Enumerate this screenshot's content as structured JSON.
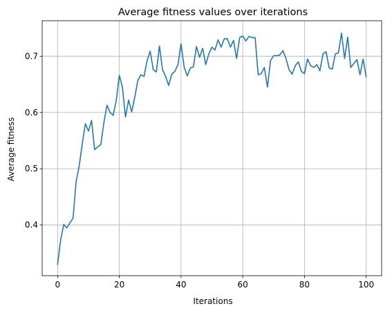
{
  "chart_data": {
    "type": "line",
    "title": "Average fitness values over iterations",
    "xlabel": "Iterations",
    "ylabel": "Average fitness",
    "xlim": [
      -5,
      105
    ],
    "ylim": [
      0.31,
      0.763
    ],
    "xticks": [
      0,
      20,
      40,
      60,
      80,
      100
    ],
    "yticks": [
      0.4,
      0.5,
      0.6,
      0.7
    ],
    "xtick_labels": [
      "0",
      "20",
      "40",
      "60",
      "80",
      "100"
    ],
    "ytick_labels": [
      "0.4",
      "0.5",
      "0.6",
      "0.7"
    ],
    "grid": true,
    "line_color": "#1f77b4",
    "series": [
      {
        "x": [
          0,
          1,
          2,
          3,
          4,
          5,
          6,
          7,
          8,
          9,
          10,
          11,
          12,
          13,
          14,
          15,
          16,
          17,
          18,
          19,
          20,
          21,
          22,
          23,
          24,
          25,
          26,
          27,
          28,
          29,
          30,
          31,
          32,
          33,
          34,
          35,
          36,
          37,
          38,
          39,
          40,
          41,
          42,
          43,
          44,
          45,
          46,
          47,
          48,
          49,
          50,
          51,
          52,
          53,
          54,
          55,
          56,
          57,
          58,
          59,
          60,
          61,
          62,
          63,
          64,
          65,
          66,
          67,
          68,
          69,
          70,
          71,
          72,
          73,
          74,
          75,
          76,
          77,
          78,
          79,
          80,
          81,
          82,
          83,
          84,
          85,
          86,
          87,
          88,
          89,
          90,
          91,
          92,
          93,
          94,
          95,
          96,
          97,
          98,
          99,
          100
        ],
        "values": [
          0.33,
          0.374,
          0.401,
          0.395,
          0.404,
          0.412,
          0.477,
          0.505,
          0.545,
          0.58,
          0.567,
          0.586,
          0.534,
          0.539,
          0.543,
          0.582,
          0.613,
          0.6,
          0.595,
          0.621,
          0.666,
          0.645,
          0.592,
          0.622,
          0.601,
          0.627,
          0.657,
          0.667,
          0.664,
          0.692,
          0.709,
          0.676,
          0.672,
          0.718,
          0.676,
          0.664,
          0.648,
          0.668,
          0.673,
          0.685,
          0.722,
          0.681,
          0.665,
          0.679,
          0.681,
          0.717,
          0.698,
          0.714,
          0.685,
          0.704,
          0.716,
          0.711,
          0.729,
          0.716,
          0.731,
          0.731,
          0.716,
          0.728,
          0.696,
          0.733,
          0.736,
          0.727,
          0.735,
          0.733,
          0.733,
          0.667,
          0.669,
          0.68,
          0.645,
          0.692,
          0.701,
          0.701,
          0.702,
          0.71,
          0.696,
          0.676,
          0.668,
          0.683,
          0.69,
          0.673,
          0.669,
          0.695,
          0.683,
          0.68,
          0.685,
          0.674,
          0.704,
          0.708,
          0.679,
          0.677,
          0.704,
          0.706,
          0.741,
          0.696,
          0.734,
          0.68,
          0.687,
          0.694,
          0.667,
          0.695,
          0.663
        ]
      }
    ]
  }
}
